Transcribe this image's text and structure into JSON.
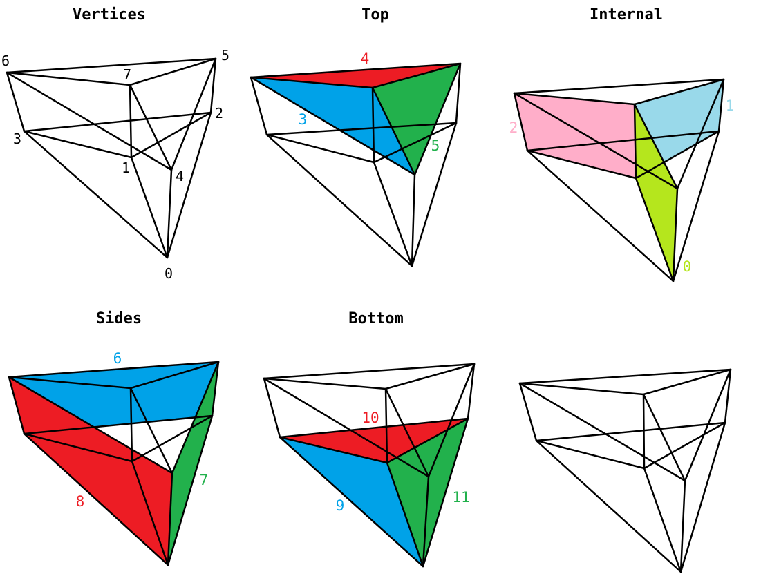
{
  "panels": [
    {
      "id": "vertices",
      "title": "Vertices",
      "vertex_labels": [
        "0",
        "1",
        "2",
        "3",
        "4",
        "5",
        "6",
        "7"
      ],
      "faces": []
    },
    {
      "id": "top",
      "title": "Top",
      "faces": [
        {
          "label": "4",
          "color": "#ed1c24"
        },
        {
          "label": "3",
          "color": "#00a2e8"
        },
        {
          "label": "5",
          "color": "#22b14c"
        }
      ]
    },
    {
      "id": "internal",
      "title": "Internal",
      "faces": [
        {
          "label": "2",
          "color": "#ffaec9"
        },
        {
          "label": "1",
          "color": "#99d9ea"
        },
        {
          "label": "0",
          "color": "#b5e61d"
        }
      ]
    },
    {
      "id": "sides",
      "title": "Sides",
      "faces": [
        {
          "label": "6",
          "color": "#00a2e8"
        },
        {
          "label": "8",
          "color": "#ed1c24"
        },
        {
          "label": "7",
          "color": "#22b14c"
        }
      ]
    },
    {
      "id": "bottom",
      "title": "Bottom",
      "faces": [
        {
          "label": "10",
          "color": "#ed1c24"
        },
        {
          "label": "9",
          "color": "#00a2e8"
        },
        {
          "label": "11",
          "color": "#22b14c"
        }
      ]
    },
    {
      "id": "blank",
      "title": "",
      "faces": []
    }
  ]
}
